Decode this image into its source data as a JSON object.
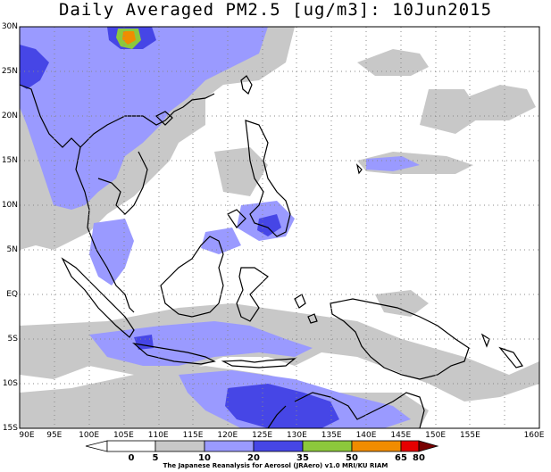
{
  "title": "Daily Averaged PM2.5 [ug/m3]: 10Jun2015",
  "lat_labels": [
    "30N",
    "25N",
    "20N",
    "15N",
    "10N",
    "5N",
    "EQ",
    "5S",
    "10S",
    "15S"
  ],
  "lon_labels": [
    "90E",
    "95E",
    "100E",
    "105E",
    "110E",
    "115E",
    "120E",
    "125E",
    "130E",
    "135E",
    "140E",
    "145E",
    "150E",
    "155E",
    "160E"
  ],
  "colorbar": {
    "ticks": [
      "0",
      "5",
      "10",
      "20",
      "35",
      "50",
      "65",
      "80"
    ],
    "colors": [
      "#ffffff",
      "#ffffff",
      "#c8c8c8",
      "#9a9aff",
      "#4646e6",
      "#8cc83c",
      "#f08c00",
      "#e60000",
      "#780000"
    ]
  },
  "credit": "The Japanese Reanalysis for Aerosol (JRAero) v1.0 MRI/KU RIAM"
}
